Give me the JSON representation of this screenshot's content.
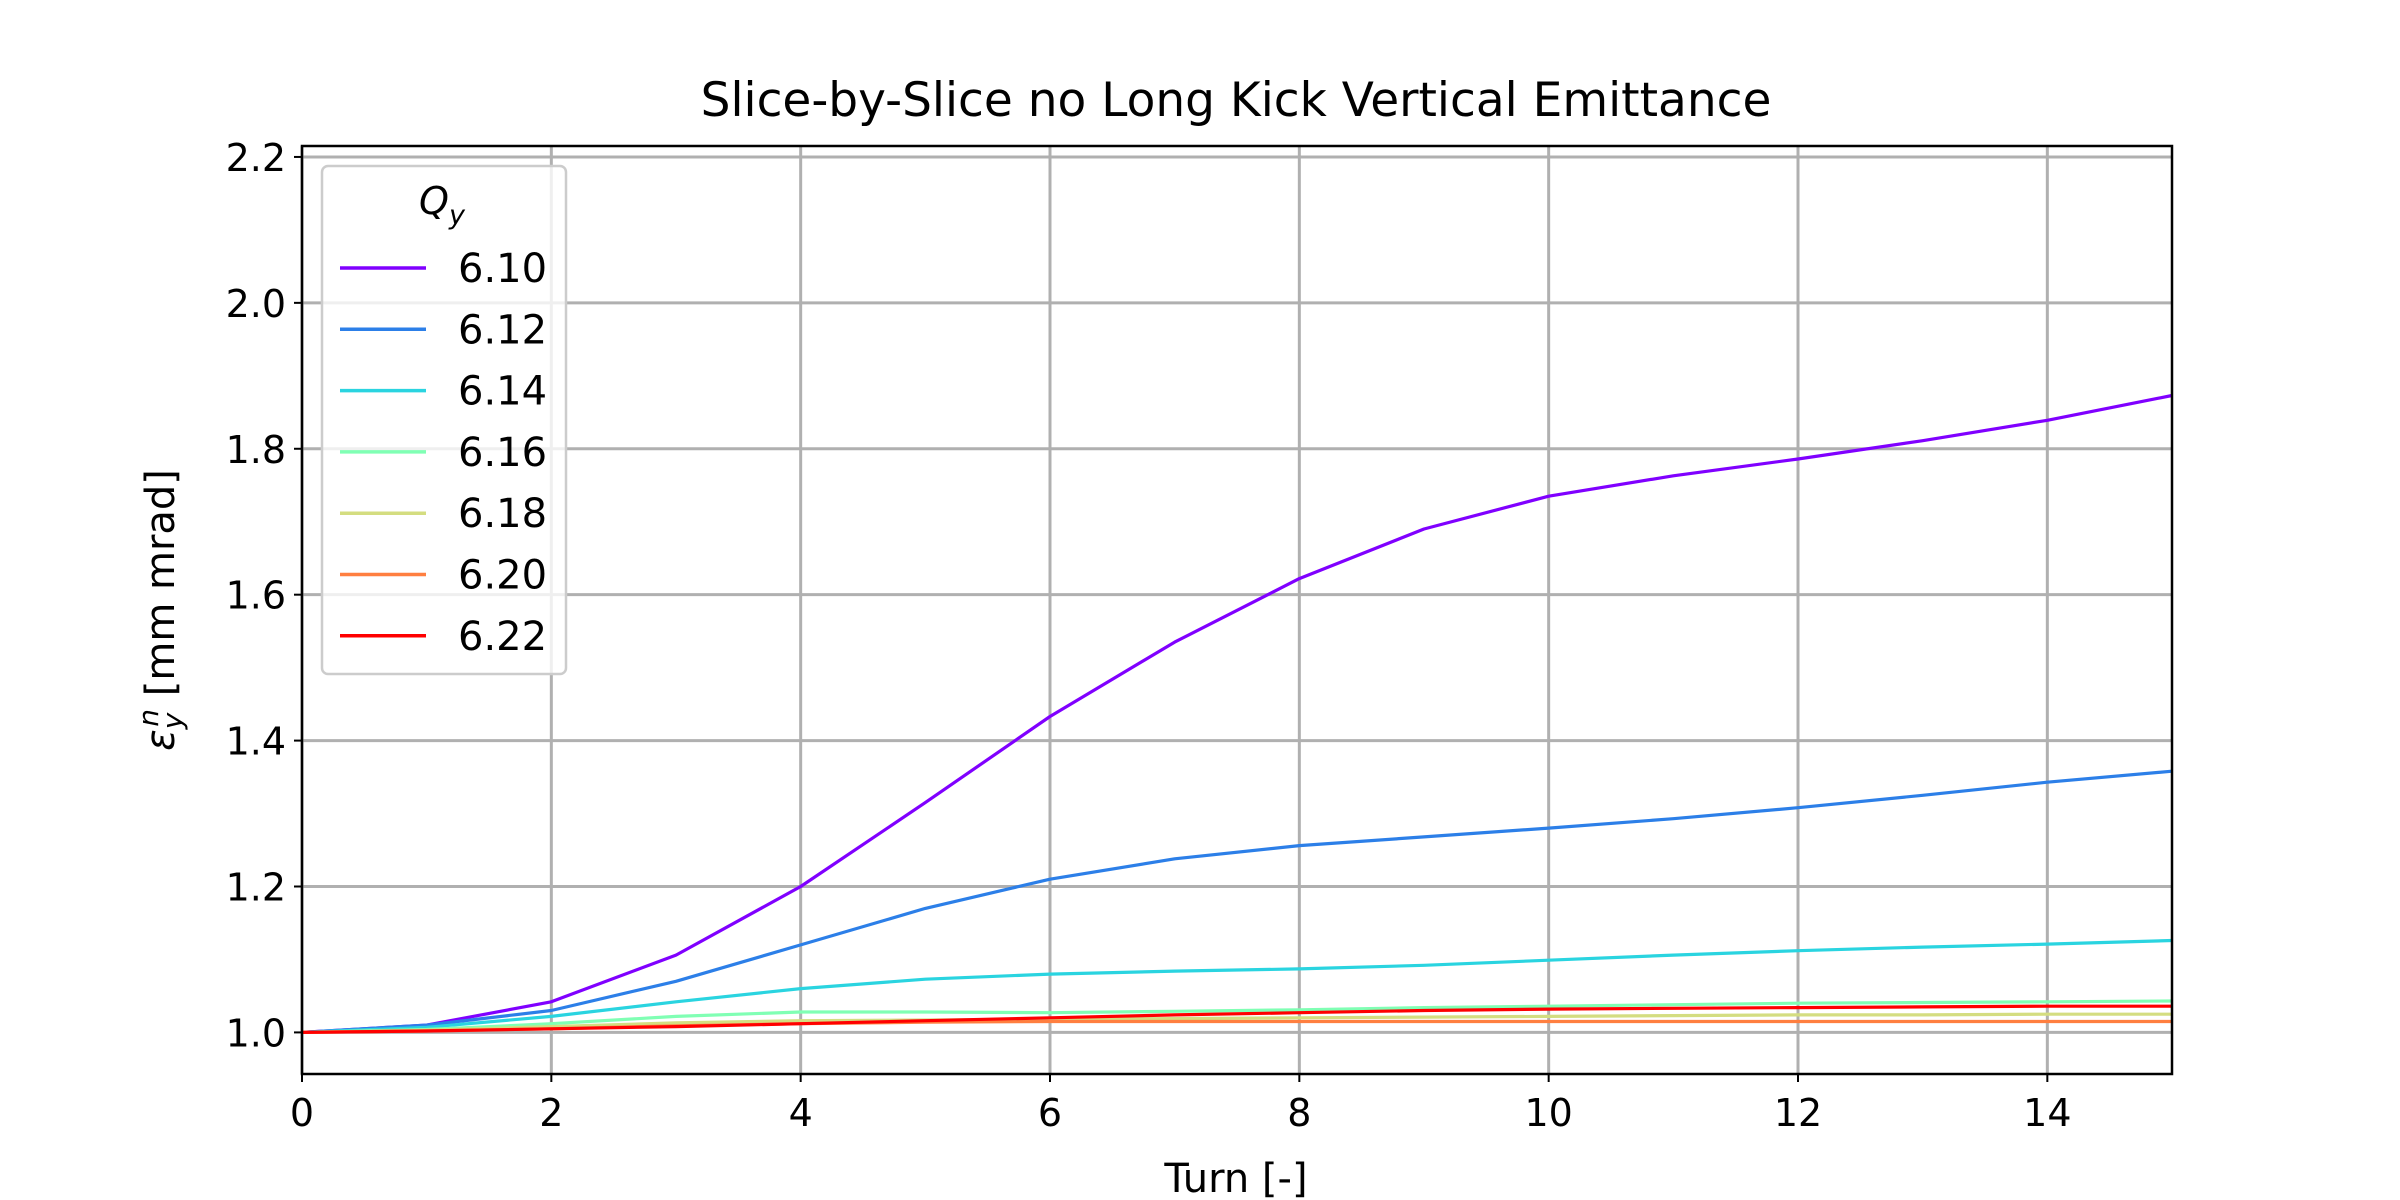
{
  "chart_data": {
    "type": "line",
    "title": "Slice-by-Slice no Long Kick Vertical Emittance",
    "xlabel": "Turn [-]",
    "ylabel": {
      "symbol": "ε",
      "sub": "y",
      "sup": "n",
      "unit": " [mm mrad]"
    },
    "xlim": [
      0,
      15
    ],
    "ylim": [
      0.943,
      2.215
    ],
    "xticks": [
      "0",
      "2",
      "4",
      "6",
      "8",
      "10",
      "12",
      "14"
    ],
    "yticks": [
      "1.0",
      "1.2",
      "1.4",
      "1.6",
      "1.8",
      "2.0",
      "2.2"
    ],
    "grid": true,
    "legend": {
      "placement": "upper-left",
      "title": {
        "symbol": "Q",
        "sub": "y"
      }
    },
    "x": [
      0,
      1,
      2,
      3,
      4,
      5,
      6,
      7,
      8,
      9,
      10,
      11,
      12,
      13,
      14,
      15
    ],
    "series": [
      {
        "name": "6.10",
        "color": "#8000ff",
        "values": [
          1.0,
          1.01,
          1.042,
          1.106,
          1.2,
          1.315,
          1.433,
          1.535,
          1.622,
          1.69,
          1.735,
          1.763,
          1.786,
          1.811,
          1.839,
          1.873
        ]
      },
      {
        "name": "6.12",
        "color": "#2c7fe8",
        "values": [
          1.0,
          1.01,
          1.03,
          1.07,
          1.12,
          1.17,
          1.21,
          1.238,
          1.256,
          1.268,
          1.28,
          1.293,
          1.308,
          1.325,
          1.343,
          1.358
        ]
      },
      {
        "name": "6.14",
        "color": "#2ad4e0",
        "values": [
          1.0,
          1.007,
          1.022,
          1.042,
          1.06,
          1.073,
          1.08,
          1.084,
          1.087,
          1.092,
          1.099,
          1.106,
          1.112,
          1.117,
          1.121,
          1.126
        ]
      },
      {
        "name": "6.16",
        "color": "#80ffb4",
        "values": [
          1.0,
          1.004,
          1.012,
          1.022,
          1.028,
          1.028,
          1.027,
          1.029,
          1.031,
          1.034,
          1.036,
          1.038,
          1.04,
          1.041,
          1.042,
          1.043
        ]
      },
      {
        "name": "6.18",
        "color": "#d4dd80",
        "values": [
          1.0,
          1.003,
          1.008,
          1.013,
          1.016,
          1.017,
          1.018,
          1.019,
          1.02,
          1.021,
          1.022,
          1.023,
          1.024,
          1.024,
          1.025,
          1.025
        ]
      },
      {
        "name": "6.20",
        "color": "#ff7f40",
        "values": [
          1.0,
          1.002,
          1.005,
          1.009,
          1.012,
          1.014,
          1.015,
          1.015,
          1.015,
          1.015,
          1.015,
          1.015,
          1.015,
          1.015,
          1.015,
          1.015
        ]
      },
      {
        "name": "6.22",
        "color": "#ff0000",
        "values": [
          1.0,
          1.002,
          1.005,
          1.008,
          1.012,
          1.016,
          1.02,
          1.024,
          1.027,
          1.03,
          1.032,
          1.033,
          1.034,
          1.035,
          1.036,
          1.036
        ]
      }
    ]
  }
}
